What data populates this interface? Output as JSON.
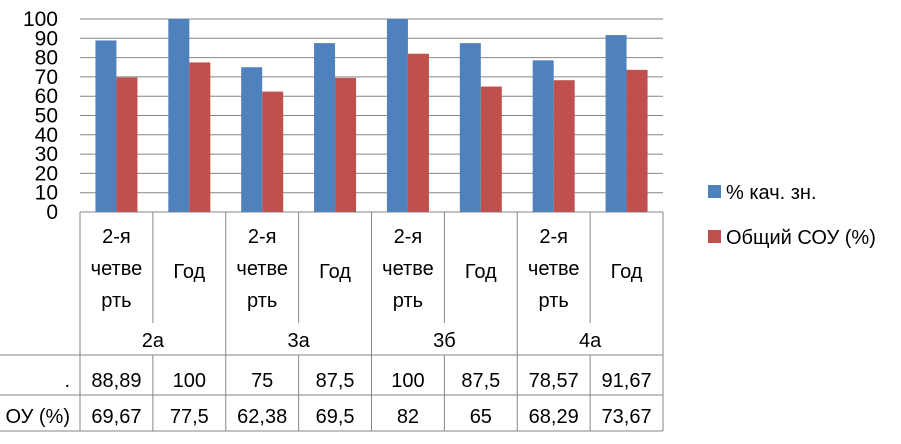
{
  "chart_data": {
    "type": "bar",
    "groups": [
      {
        "label": "2а",
        "categories": [
          "2-я четве рть",
          "Год"
        ]
      },
      {
        "label": "3а",
        "categories": [
          "2-я четве рть",
          "Год"
        ]
      },
      {
        "label": "3б",
        "categories": [
          "2-я четве рть",
          "Год"
        ]
      },
      {
        "label": "4а",
        "categories": [
          "2-я четве рть",
          "Год"
        ]
      }
    ],
    "category_lines": [
      [
        "2-я",
        "четве",
        "рть"
      ],
      [
        "Год"
      ]
    ],
    "series": [
      {
        "name": "% кач. зн.",
        "table_label": ".",
        "color": "#4F81BD",
        "values": [
          88.89,
          100,
          75,
          87.5,
          100,
          87.5,
          78.57,
          91.67
        ],
        "display": [
          "88,89",
          "100",
          "75",
          "87,5",
          "100",
          "87,5",
          "78,57",
          "91,67"
        ]
      },
      {
        "name": "Общий СОУ (%)",
        "table_label": "ОУ (%)",
        "color": "#C0504D",
        "values": [
          69.67,
          77.5,
          62.38,
          69.5,
          82,
          65,
          68.29,
          73.67
        ],
        "display": [
          "69,67",
          "77,5",
          "62,38",
          "69,5",
          "82",
          "65",
          "68,29",
          "73,67"
        ]
      }
    ],
    "yticks": [
      "0",
      "10",
      "20",
      "30",
      "40",
      "50",
      "60",
      "70",
      "80",
      "90",
      "100"
    ],
    "ylim": [
      0,
      100
    ],
    "grid": true,
    "legend": "right"
  }
}
